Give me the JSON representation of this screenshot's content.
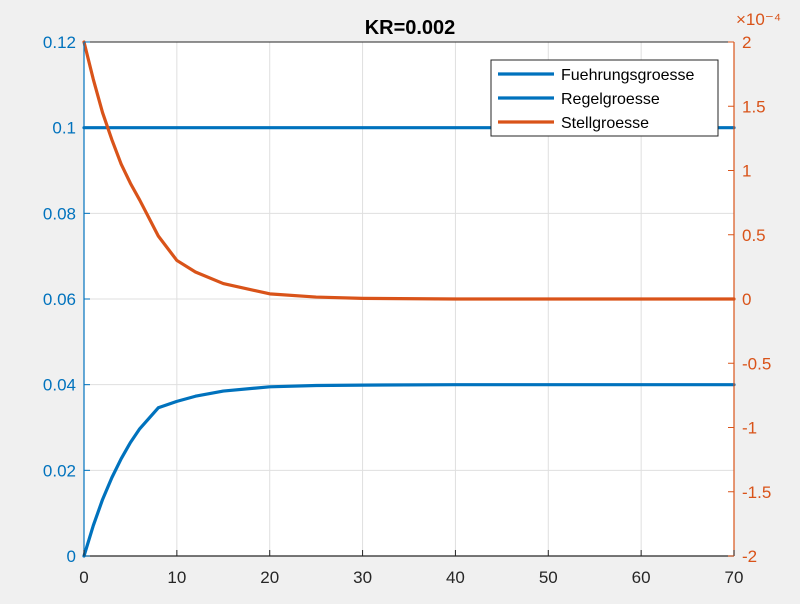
{
  "chart_data": {
    "type": "line",
    "title": "KR=0.002",
    "xlim": [
      0,
      70
    ],
    "x_ticks": [
      "0",
      "10",
      "20",
      "30",
      "40",
      "50",
      "60",
      "70"
    ],
    "y_left": {
      "lim": [
        0,
        0.12
      ],
      "ticks": [
        "0",
        "0.02",
        "0.04",
        "0.06",
        "0.08",
        "0.1",
        "0.12"
      ],
      "color": "#0072BD"
    },
    "y_right": {
      "lim": [
        -2,
        2
      ],
      "exponent_label": "×10⁻⁴",
      "ticks": [
        "-2",
        "-1.5",
        "-1",
        "-0.5",
        "0",
        "0.5",
        "1",
        "1.5",
        "2"
      ],
      "color": "#D95319"
    },
    "grid": true,
    "legend_position": "top-right",
    "series": [
      {
        "name": "Fuehrungsgroesse",
        "axis": "left",
        "color": "#0072BD",
        "x": [
          0,
          70
        ],
        "y": [
          0.1,
          0.1
        ]
      },
      {
        "name": "Regelgroesse",
        "axis": "left",
        "color": "#0072BD",
        "x": [
          0,
          1,
          2,
          3,
          4,
          5,
          6,
          8,
          10,
          12,
          15,
          20,
          25,
          30,
          40,
          50,
          60,
          70
        ],
        "y": [
          0,
          0.0071,
          0.0132,
          0.0183,
          0.0227,
          0.0265,
          0.0297,
          0.0346,
          0.0361,
          0.0373,
          0.0385,
          0.0395,
          0.0398,
          0.0399,
          0.04,
          0.04,
          0.04,
          0.04
        ]
      },
      {
        "name": "Stellgroesse",
        "axis": "right",
        "color": "#D95319",
        "x": [
          0,
          1,
          2,
          3,
          4,
          5,
          6,
          8,
          10,
          12,
          15,
          20,
          25,
          30,
          40,
          50,
          60,
          70
        ],
        "y": [
          2.0,
          1.71,
          1.45,
          1.24,
          1.05,
          0.9,
          0.77,
          0.49,
          0.3,
          0.21,
          0.12,
          0.04,
          0.015,
          0.005,
          0,
          0,
          0,
          0
        ]
      }
    ]
  }
}
